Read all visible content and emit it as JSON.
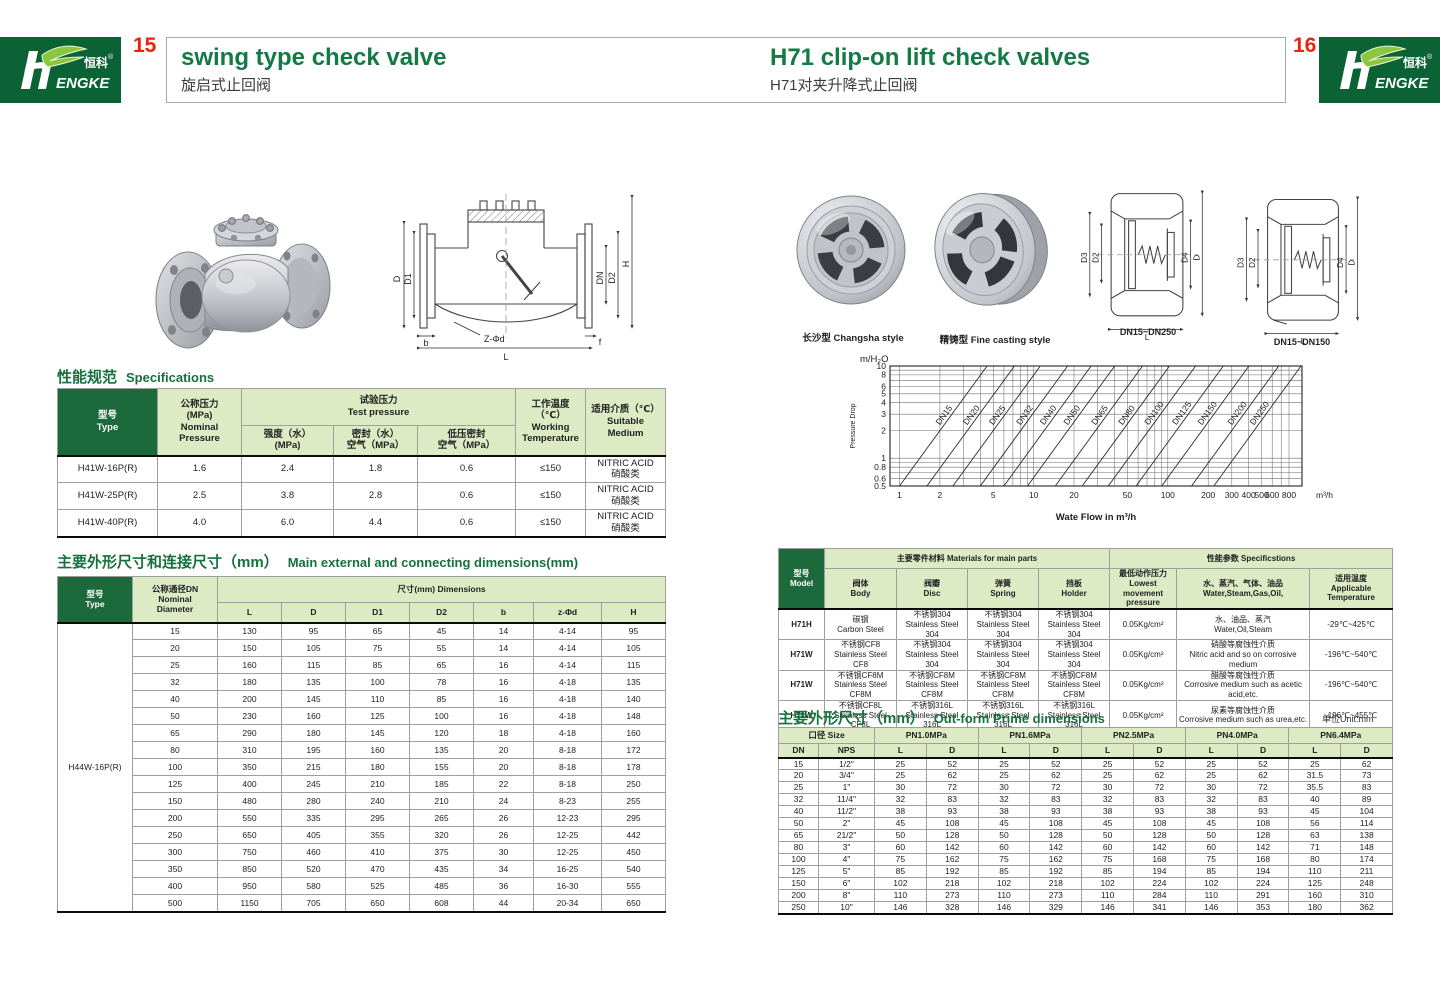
{
  "colors": {
    "accent_green": "#16713d",
    "title_green": "#137a45",
    "header_fill": "#dcebc4",
    "header_dark": "#1c6a3c",
    "page_red": "#e8230f",
    "logo_bg": "#0b6234",
    "leaf_green": "#8cc63f"
  },
  "brand": {
    "logo_zh": "恒科",
    "logo_reg": "®",
    "logo_en": "ENGKE"
  },
  "page15": {
    "number": "15",
    "title_en": "swing type check valve",
    "title_zh": "旋启式止回阀",
    "drawing_labels": {
      "d": "D",
      "d1": "D1",
      "dn": "DN",
      "d2": "D2",
      "h": "H",
      "l": "L",
      "b": "b",
      "f": "f",
      "zd": "Z-Φd"
    },
    "spec_heading": {
      "zh": "性能规范",
      "en": "Specifications"
    },
    "spec_table": {
      "col_type": "型号\nType",
      "col_nominal": "公称压力\n(MPa)\nNominal\nPressure",
      "col_test": "试验压力\nTest pressure",
      "col_test_sub": [
        "强度（水）\n(MPa)",
        "密封（水）\n空气（MPa）",
        "低压密封\n空气（MPa）"
      ],
      "col_working": "工作温度（℃）\nWorking\nTemperature",
      "col_medium": "适用介质（℃）\nSuitable\nMedium",
      "rows": [
        [
          "H41W-16P(R)",
          "1.6",
          "2.4",
          "1.8",
          "0.6",
          "≤150",
          "NITRIC ACID\n硝酸类"
        ],
        [
          "H41W-25P(R)",
          "2.5",
          "3.8",
          "2.8",
          "0.6",
          "≤150",
          "NITRIC ACID\n硝酸类"
        ],
        [
          "H41W-40P(R)",
          "4.0",
          "6.0",
          "4.4",
          "0.6",
          "≤150",
          "NITRIC ACID\n硝酸类"
        ]
      ]
    },
    "dim_heading": {
      "zh": "主要外形尺寸和连接尺寸（mm）",
      "en": "Main external and connecting dimensions(mm)"
    },
    "dim_table": {
      "col_type": "型号\nType",
      "col_dn": "公称通径DN\nNominal\nDiameter",
      "col_dims": "尺寸(mm) Dimensions",
      "cols": [
        "L",
        "D",
        "D1",
        "D2",
        "b",
        "z-Φd",
        "H"
      ],
      "model": "H44W-16P(R)",
      "rows": [
        [
          "15",
          "130",
          "95",
          "65",
          "45",
          "14",
          "4-14",
          "95"
        ],
        [
          "20",
          "150",
          "105",
          "75",
          "55",
          "14",
          "4-14",
          "105"
        ],
        [
          "25",
          "160",
          "115",
          "85",
          "65",
          "16",
          "4-14",
          "115"
        ],
        [
          "32",
          "180",
          "135",
          "100",
          "78",
          "16",
          "4-18",
          "135"
        ],
        [
          "40",
          "200",
          "145",
          "110",
          "85",
          "16",
          "4-18",
          "140"
        ],
        [
          "50",
          "230",
          "160",
          "125",
          "100",
          "16",
          "4-18",
          "148"
        ],
        [
          "65",
          "290",
          "180",
          "145",
          "120",
          "18",
          "4-18",
          "160"
        ],
        [
          "80",
          "310",
          "195",
          "160",
          "135",
          "20",
          "8-18",
          "172"
        ],
        [
          "100",
          "350",
          "215",
          "180",
          "155",
          "20",
          "8-18",
          "178"
        ],
        [
          "125",
          "400",
          "245",
          "210",
          "185",
          "22",
          "8-18",
          "250"
        ],
        [
          "150",
          "480",
          "280",
          "240",
          "210",
          "24",
          "8-23",
          "255"
        ],
        [
          "200",
          "550",
          "335",
          "295",
          "265",
          "26",
          "12-23",
          "295"
        ],
        [
          "250",
          "650",
          "405",
          "355",
          "320",
          "26",
          "12-25",
          "442"
        ],
        [
          "300",
          "750",
          "460",
          "410",
          "375",
          "30",
          "12-25",
          "450"
        ],
        [
          "350",
          "850",
          "520",
          "470",
          "435",
          "34",
          "16-25",
          "540"
        ],
        [
          "400",
          "950",
          "580",
          "525",
          "485",
          "36",
          "16-30",
          "555"
        ],
        [
          "500",
          "1150",
          "705",
          "650",
          "608",
          "44",
          "20-34",
          "650"
        ]
      ]
    }
  },
  "page16": {
    "number": "16",
    "title_en": "H71 clip-on lift check valves",
    "title_zh": "H71对夹升降式止回阀",
    "photo_captions": [
      "长沙型 Changsha style",
      "精铸型 Fine casting style"
    ],
    "drawings": [
      {
        "caption": "DN15~DN250",
        "d3": "D3",
        "d2": "D2",
        "d4": "D4",
        "d": "D",
        "l": "L"
      },
      {
        "caption": "DN15~DN150",
        "d3": "D3",
        "d2": "D2",
        "d4": "D4",
        "d": "D",
        "l": "L"
      }
    ],
    "materials_table": {
      "col_model": "型号\nModel",
      "col_main": "主要零件材料 Materials for main parts",
      "col_main_sub": [
        "阀体\nBody",
        "阀瓣\nDisc",
        "弹簧\nSpring",
        "挡板\nHolder"
      ],
      "col_perf": "性能参数 Specificstions",
      "col_perf_sub": [
        "最低动作压力\nLowest movement\npressure",
        "水、蒸汽、气体、油品\nWater,Steam,Gas,Oil,",
        "适用温度\nApplicable\nTemperature"
      ],
      "rows": [
        [
          "H71H",
          "碳钢\nCarbon Steel",
          "不锈钢304\nStainless Steel 304",
          "不锈钢304\nStainless Steel 304",
          "不锈钢304\nStainless Steel 304",
          "0.05Kg/cm²",
          "水、油品、蒸汽\nWater,Oil,Steam",
          "-29℃~425℃"
        ],
        [
          "H71W",
          "不锈钢CF8\nStainless Steel CF8",
          "不锈钢304\nStainless Steel 304",
          "不锈钢304\nStainless Steel 304",
          "不锈钢304\nStainless Steel 304",
          "0.05Kg/cm²",
          "硝酸等腐蚀性介质\nNitric acid and so on corrosive medium",
          "-196℃~540℃"
        ],
        [
          "H71W",
          "不锈钢CF8M\nStainless Steel CF8M",
          "不锈钢CF8M\nStainless Steel CF8M",
          "不锈钢CF8M\nStainless Steel CF8M",
          "不锈钢CF8M\nStainless Steel CF8M",
          "0.05Kg/cm²",
          "醋酸等腐蚀性介质\nCorrosive medium such as acetic acid,etc.",
          "-196℃~540℃"
        ],
        [
          "H71W",
          "不锈钢CF8L\nStainless Steel CF8L",
          "不锈钢316L\nStainless Steel 316L",
          "不锈钢316L\nStainless Steel 316L",
          "不锈钢316L\nStainless Steel 316L",
          "0.05Kg/cm²",
          "尿素等腐蚀性介质\nCorrosive medium such as urea,etc.",
          "-196℃~455℃"
        ]
      ]
    },
    "outform_heading": {
      "zh": "主要外形尺寸（mm）",
      "en": "Out-form Prime dimensions"
    },
    "unit_note": "单位Unit:mm",
    "outform_table": {
      "col_size": "口径 Size",
      "col_dn": "DN",
      "col_nps": "NPS",
      "pn_cols": [
        "PN1.0MPa",
        "PN1.6MPa",
        "PN2.5MPa",
        "PN4.0MPa",
        "PN6.4MPa"
      ],
      "sub_cols": [
        "L",
        "D"
      ],
      "rows": [
        [
          "15",
          "1/2\"",
          "25",
          "52",
          "25",
          "52",
          "25",
          "52",
          "25",
          "52",
          "25",
          "62"
        ],
        [
          "20",
          "3/4\"",
          "25",
          "62",
          "25",
          "62",
          "25",
          "62",
          "25",
          "62",
          "31.5",
          "73"
        ],
        [
          "25",
          "1\"",
          "30",
          "72",
          "30",
          "72",
          "30",
          "72",
          "30",
          "72",
          "35.5",
          "83"
        ],
        [
          "32",
          "11/4\"",
          "32",
          "83",
          "32",
          "83",
          "32",
          "83",
          "32",
          "83",
          "40",
          "89"
        ],
        [
          "40",
          "11/2\"",
          "38",
          "93",
          "38",
          "93",
          "38",
          "93",
          "38",
          "93",
          "45",
          "104"
        ],
        [
          "50",
          "2\"",
          "45",
          "108",
          "45",
          "108",
          "45",
          "108",
          "45",
          "108",
          "56",
          "114"
        ],
        [
          "65",
          "21/2\"",
          "50",
          "128",
          "50",
          "128",
          "50",
          "128",
          "50",
          "128",
          "63",
          "138"
        ],
        [
          "80",
          "3\"",
          "60",
          "142",
          "60",
          "142",
          "60",
          "142",
          "60",
          "142",
          "71",
          "148"
        ],
        [
          "100",
          "4\"",
          "75",
          "162",
          "75",
          "162",
          "75",
          "168",
          "75",
          "168",
          "80",
          "174"
        ],
        [
          "125",
          "5\"",
          "85",
          "192",
          "85",
          "192",
          "85",
          "194",
          "85",
          "194",
          "110",
          "211"
        ],
        [
          "150",
          "6\"",
          "102",
          "218",
          "102",
          "218",
          "102",
          "224",
          "102",
          "224",
          "125",
          "248"
        ],
        [
          "200",
          "8\"",
          "110",
          "273",
          "110",
          "273",
          "110",
          "284",
          "110",
          "291",
          "160",
          "310"
        ],
        [
          "250",
          "10\"",
          "146",
          "328",
          "146",
          "329",
          "146",
          "341",
          "146",
          "353",
          "180",
          "362"
        ]
      ]
    }
  },
  "chart_data": {
    "type": "line",
    "title": "m/H₂O",
    "ylabel": "Pressure Drop",
    "xlabel": "Wate Flow in m³/h",
    "x_unit": "m³/h",
    "x_scale": "log",
    "y_scale": "log",
    "xlim": [
      0.85,
      1000
    ],
    "ylim": [
      0.5,
      10
    ],
    "x_ticks": [
      1,
      2,
      5,
      10,
      20,
      50,
      100,
      200,
      300,
      400,
      500,
      600,
      800
    ],
    "y_ticks": [
      0.5,
      0.6,
      0.8,
      1,
      2,
      3,
      4,
      5,
      6,
      8,
      10
    ],
    "grid": true,
    "legend_position": "labels-on-lines",
    "series": [
      {
        "name": "DN15",
        "x_at_ymin": 1.0,
        "x_at_ymax": 4.5
      },
      {
        "name": "DN20",
        "x_at_ymin": 1.6,
        "x_at_ymax": 7.2
      },
      {
        "name": "DN25",
        "x_at_ymin": 2.5,
        "x_at_ymax": 11.2
      },
      {
        "name": "DN32",
        "x_at_ymin": 4.0,
        "x_at_ymax": 17.9
      },
      {
        "name": "DN40",
        "x_at_ymin": 6.0,
        "x_at_ymax": 26.8
      },
      {
        "name": "DN50",
        "x_at_ymin": 9.0,
        "x_at_ymax": 40.2
      },
      {
        "name": "DN65",
        "x_at_ymin": 14.5,
        "x_at_ymax": 64.8
      },
      {
        "name": "DN80",
        "x_at_ymin": 23,
        "x_at_ymax": 103
      },
      {
        "name": "DN100",
        "x_at_ymin": 36,
        "x_at_ymax": 161
      },
      {
        "name": "DN125",
        "x_at_ymin": 58,
        "x_at_ymax": 259
      },
      {
        "name": "DN150",
        "x_at_ymin": 90,
        "x_at_ymax": 402
      },
      {
        "name": "DN200",
        "x_at_ymin": 150,
        "x_at_ymax": 670
      },
      {
        "name": "DN250",
        "x_at_ymin": 220,
        "x_at_ymax": 983
      }
    ]
  }
}
